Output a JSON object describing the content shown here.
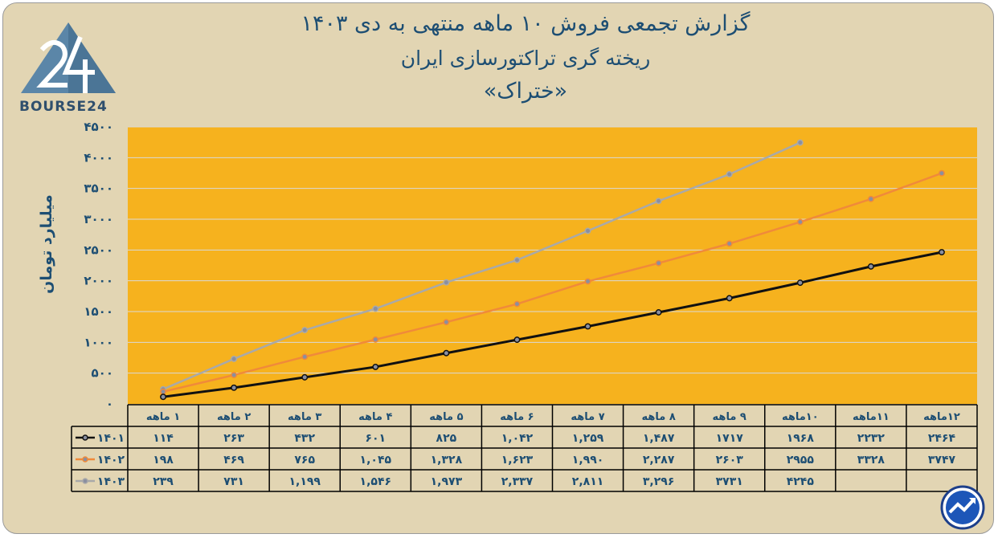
{
  "header": {
    "title_line1": "گزارش تجمعی فروش ۱۰ ماهه منتهی به دی ۱۴۰۳",
    "title_line2": "ریخته گری تراکتورسازی ایران",
    "title_line3": "«ختراک»"
  },
  "logo": {
    "text": "BOURSE24",
    "mark_icon": "bourse24-triangle-logo-icon"
  },
  "badge": {
    "icon": "trend-arrow-logo-icon"
  },
  "colors": {
    "s1401": "#111111",
    "s1402": "#f08a3a",
    "s1403": "#a9a9a9",
    "plot_bg": "#f6b21e",
    "text": "#1d4e73"
  },
  "chart_data": {
    "type": "line",
    "ylabel": "میلیارد تومان",
    "ylim": [
      0,
      4500
    ],
    "yticks": [
      0,
      500,
      1000,
      1500,
      2000,
      2500,
      3000,
      3500,
      4000,
      4500
    ],
    "ytick_labels": [
      "۰",
      "۵۰۰",
      "۱۰۰۰",
      "۱۵۰۰",
      "۲۰۰۰",
      "۲۵۰۰",
      "۳۰۰۰",
      "۳۵۰۰",
      "۴۰۰۰",
      "۴۵۰۰"
    ],
    "categories": [
      "۱ ماهه",
      "۲ ماهه",
      "۳ ماهه",
      "۴ ماهه",
      "۵ ماهه",
      "۶ ماهه",
      "۷ ماهه",
      "۸ ماهه",
      "۹ ماهه",
      "۱۰ماهه",
      "۱۱ماهه",
      "۱۲ماهه"
    ],
    "grid": true,
    "legend": "table-left",
    "series": [
      {
        "name": "۱۴۰۱",
        "values": [
          114,
          263,
          432,
          601,
          825,
          1042,
          1259,
          1487,
          1717,
          1968,
          2232,
          2464
        ],
        "labels": [
          "۱۱۴",
          "۲۶۳",
          "۴۳۲",
          "۶۰۱",
          "۸۲۵",
          "۱,۰۴۲",
          "۱,۲۵۹",
          "۱,۴۸۷",
          "۱۷۱۷",
          "۱۹۶۸",
          "۲۲۳۲",
          "۲۴۶۴"
        ]
      },
      {
        "name": "۱۴۰۲",
        "values": [
          198,
          469,
          765,
          1045,
          1328,
          1623,
          1990,
          2287,
          2603,
          2955,
          3328,
          3747
        ],
        "labels": [
          "۱۹۸",
          "۴۶۹",
          "۷۶۵",
          "۱,۰۴۵",
          "۱,۳۲۸",
          "۱,۶۲۳",
          "۱,۹۹۰",
          "۲,۲۸۷",
          "۲۶۰۳",
          "۲۹۵۵",
          "۳۳۲۸",
          "۳۷۴۷"
        ]
      },
      {
        "name": "۱۴۰۳",
        "values": [
          239,
          731,
          1199,
          1546,
          1973,
          2337,
          2811,
          3296,
          3731,
          4245,
          null,
          null
        ],
        "labels": [
          "۲۳۹",
          "۷۳۱",
          "۱,۱۹۹",
          "۱,۵۴۶",
          "۱,۹۷۳",
          "۲,۳۳۷",
          "۲,۸۱۱",
          "۳,۲۹۶",
          "۳۷۳۱",
          "۴۲۴۵",
          "",
          ""
        ]
      }
    ]
  }
}
